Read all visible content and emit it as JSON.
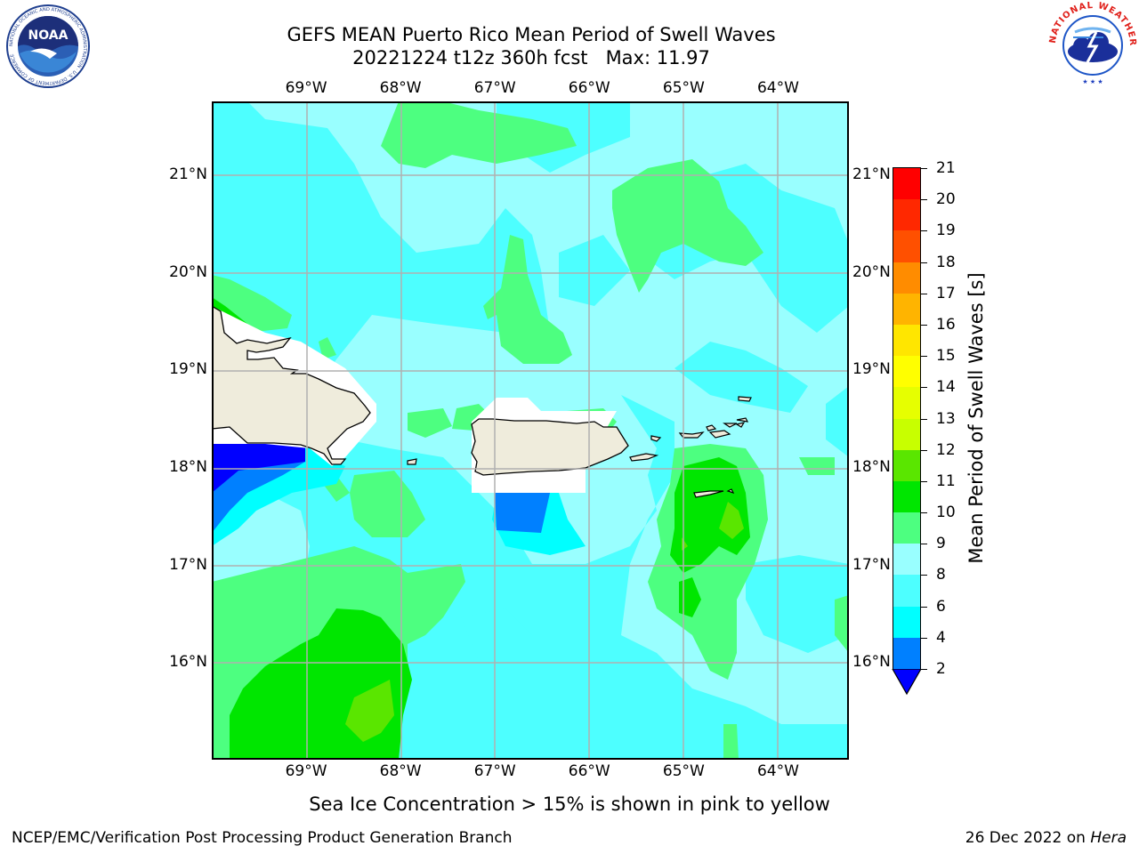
{
  "title": {
    "line1": "GEFS MEAN Puerto Rico Mean Period of Swell Waves",
    "line2": "20221224 t12z 360h fcst   Max: 11.97"
  },
  "logos": {
    "noaa": {
      "text": "NOAA",
      "ring_text": "NATIONAL OCEANIC AND ATMOSPHERIC ADMINISTRATION · U.S. DEPARTMENT OF COMMERCE"
    },
    "nws": {
      "ring_text": "NATIONAL WEATHER SERVICE"
    }
  },
  "map": {
    "lon_labels": [
      "69°W",
      "68°W",
      "67°W",
      "66°W",
      "65°W",
      "64°W"
    ],
    "lat_labels": [
      "21°N",
      "20°N",
      "19°N",
      "18°N",
      "17°N",
      "16°N"
    ],
    "lon_range": [
      -70.0,
      -63.25
    ],
    "lat_range": [
      15.0,
      21.75
    ],
    "gridlines": true,
    "land_color": "#efecdc",
    "ocean_dominant_range_s": "6-9"
  },
  "colorbar": {
    "label": "Mean Period of Swell Waves [s]",
    "tick_labels": [
      "2",
      "4",
      "6",
      "8",
      "9",
      "10",
      "11",
      "12",
      "13",
      "14",
      "15",
      "16",
      "17",
      "18",
      "19",
      "20",
      "21"
    ],
    "colors": [
      "#0000ff",
      "#0080ff",
      "#00ffff",
      "#4dffff",
      "#99ffff",
      "#4dff80",
      "#00e600",
      "#5ae600",
      "#c8ff00",
      "#e6ff00",
      "#ffff00",
      "#ffe600",
      "#ffb400",
      "#ff8c00",
      "#ff5000",
      "#ff2800",
      "#ff0000"
    ],
    "under_color": "#0000ff"
  },
  "subtitle": "Sea Ice Concentration > 15% is shown in pink to yellow",
  "footer": {
    "left": "NCEP/EMC/Verification Post Processing Product Generation Branch",
    "right_date": "26 Dec 2022 on",
    "right_machine": "Hera"
  }
}
